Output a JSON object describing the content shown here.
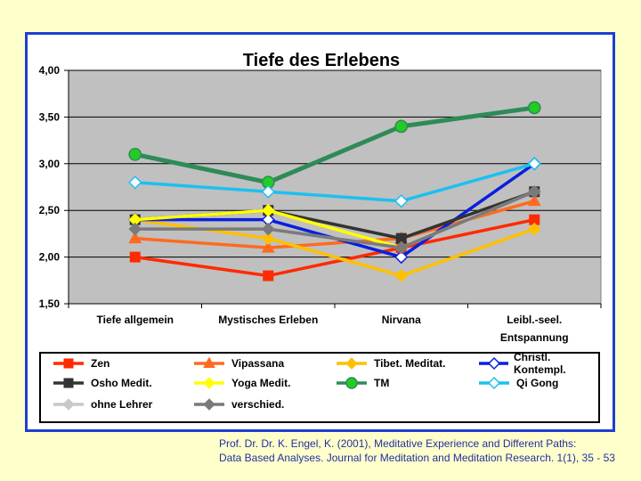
{
  "chart_data": {
    "type": "line",
    "title": "Tiefe des Erlebens",
    "categories": [
      "Tiefe allgemein",
      "Mystisches Erleben",
      "Nirvana",
      "Leibl.-seel. Entspannung"
    ],
    "category_lines": [
      [
        "Tiefe allgemein"
      ],
      [
        "Mystisches Erleben"
      ],
      [
        "Nirvana"
      ],
      [
        "Leibl.-seel.",
        "Entspannung"
      ]
    ],
    "ylim": [
      1.5,
      4.0
    ],
    "yticks": [
      "1,50",
      "2,00",
      "2,50",
      "3,00",
      "3,50",
      "4,00"
    ],
    "grid": true,
    "legend_position": "bottom",
    "series": [
      {
        "name": "Zen",
        "color": "#FF2A00",
        "marker": "square",
        "values": [
          2.0,
          1.8,
          2.1,
          2.4
        ]
      },
      {
        "name": "Vipassana",
        "color": "#FF6A20",
        "marker": "triangle",
        "values": [
          2.2,
          2.1,
          2.2,
          2.6
        ]
      },
      {
        "name": "Tibet. Meditat.",
        "color": "#FFC000",
        "marker": "diamond",
        "values": [
          2.4,
          2.2,
          1.8,
          2.3
        ]
      },
      {
        "name": "Christl. Kontempl.",
        "color": "#0A1EE0",
        "marker": "diamond-open",
        "values": [
          2.4,
          2.4,
          2.0,
          3.0
        ]
      },
      {
        "name": "Osho Medit.",
        "color": "#333333",
        "marker": "square",
        "values": [
          2.4,
          2.5,
          2.2,
          2.7
        ]
      },
      {
        "name": "Yoga Medit.",
        "color": "#FFFF00",
        "marker": "diamond",
        "values": [
          2.4,
          2.5,
          2.1,
          2.7
        ]
      },
      {
        "name": "TM",
        "color": "#2E8B57",
        "marker": "circle",
        "values": [
          3.1,
          2.8,
          3.4,
          3.6
        ]
      },
      {
        "name": "Qi Gong",
        "color": "#1CC0F0",
        "marker": "diamond-open",
        "values": [
          2.8,
          2.7,
          2.6,
          3.0
        ]
      },
      {
        "name": "ohne Lehrer",
        "color": "#C8C8C8",
        "marker": "diamond",
        "values": [
          2.3,
          2.3,
          2.1,
          2.7
        ]
      },
      {
        "name": "verschied.",
        "color": "#7A7A7A",
        "marker": "diamond",
        "values": [
          2.3,
          2.3,
          2.1,
          2.7
        ]
      }
    ]
  },
  "citation": {
    "line1": "Prof. Dr. Dr. K. Engel, K. (2001), Meditative Experience and Different Paths:",
    "line2": "Data Based Analyses. Journal for Meditation and Meditation Research. 1(1), 35 - 53"
  }
}
